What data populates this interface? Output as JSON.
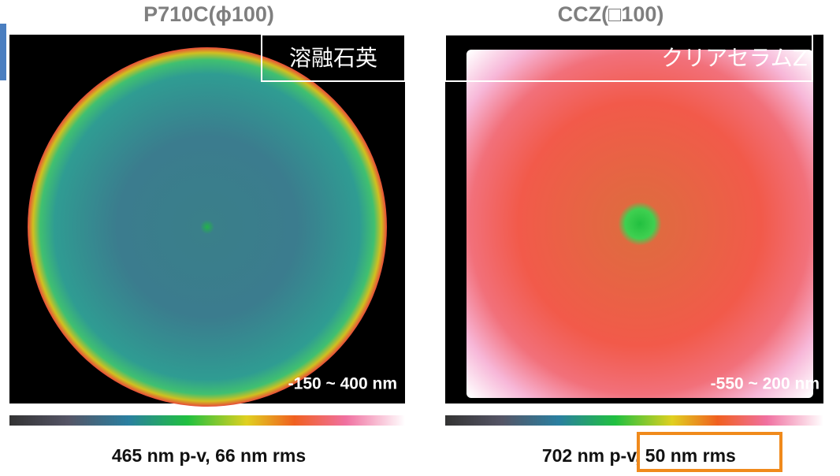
{
  "panels": [
    {
      "title": "P710C(ϕ100)",
      "material": "溶融石英",
      "range": "-150 ~ 400 nm",
      "caption": "465 nm p-v, 66 nm rms"
    },
    {
      "title": "CCZ(□100)",
      "material": "クリアセラムZ",
      "range": "-550 ~ 200 nm",
      "caption_pv": "702 nm p-v",
      "caption_rms": ", 50 nm rms"
    }
  ]
}
